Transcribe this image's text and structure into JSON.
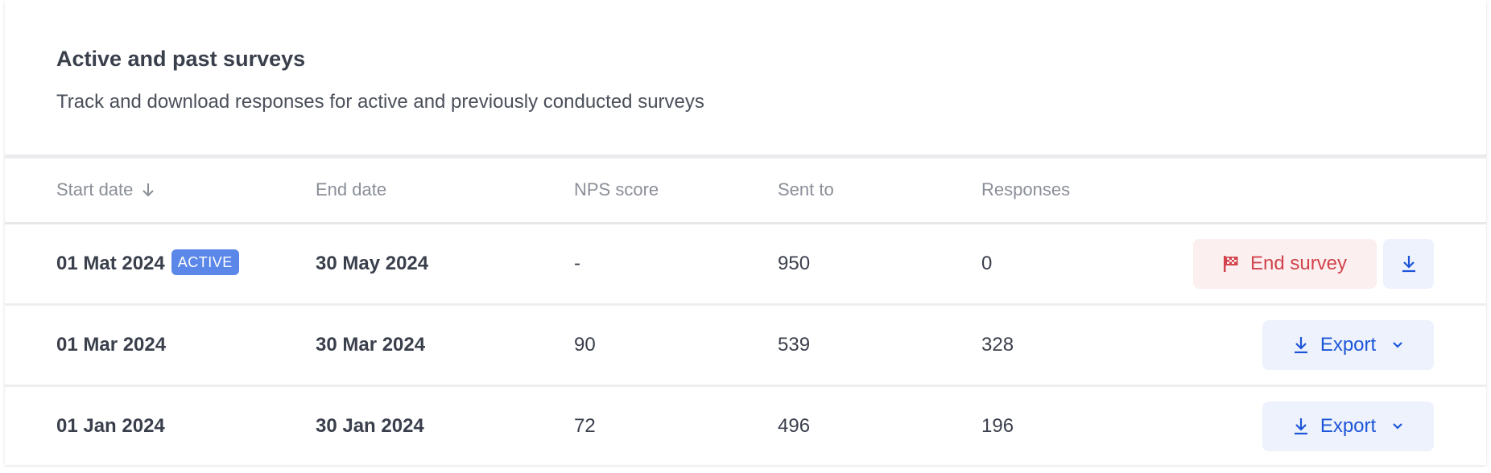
{
  "header": {
    "title": "Active and past surveys",
    "subtitle": "Track and download responses for active and previously conducted surveys"
  },
  "table": {
    "columns": [
      "Start date",
      "End date",
      "NPS score",
      "Sent to",
      "Responses"
    ],
    "sort": {
      "column": "Start date",
      "direction": "descending",
      "icon": "arrow-down-icon"
    },
    "rows": [
      {
        "start": "01 Mat 2024",
        "badge": "ACTIVE",
        "end": "30 May 2024",
        "nps": "-",
        "sent": "950",
        "responses": "0",
        "primary_action": "End survey"
      },
      {
        "start": "01 Mar 2024",
        "end": "30 Mar 2024",
        "nps": "90",
        "sent": "539",
        "responses": "328",
        "primary_action": "Export"
      },
      {
        "start": "01 Jan 2024",
        "end": "30 Jan 2024",
        "nps": "72",
        "sent": "496",
        "responses": "196",
        "primary_action": "Export"
      }
    ]
  },
  "colors": {
    "accent": "#1d55d9",
    "danger": "#d2434b",
    "badge": "#5b87e8",
    "text": "#3a3f4c",
    "muted": "#8a8e97"
  }
}
